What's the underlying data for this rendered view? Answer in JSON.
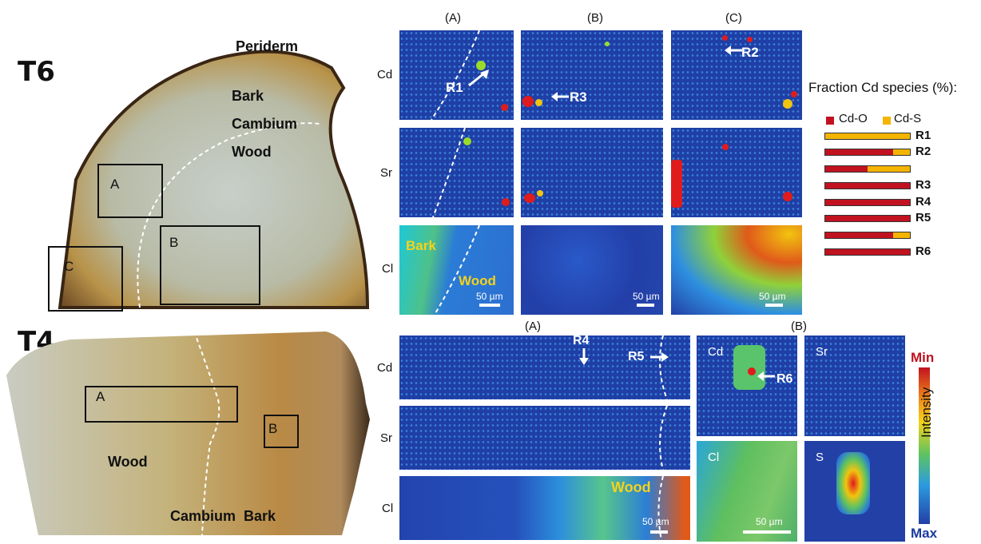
{
  "samples": {
    "t6": "T6",
    "t4": "T4"
  },
  "photo_t6": {
    "labels": {
      "periderm": "Periderm",
      "bark": "Bark",
      "cambium": "Cambium",
      "wood": "Wood"
    },
    "boxes": {
      "a": "A",
      "b": "B",
      "c": "C"
    }
  },
  "photo_t4": {
    "labels": {
      "wood": "Wood",
      "cambium": "Cambium",
      "bark": "Bark"
    },
    "boxes": {
      "a": "A",
      "b": "B"
    }
  },
  "t6_panels": {
    "columns": [
      "(A)",
      "(B)",
      "(C)"
    ],
    "rows": [
      "Cd",
      "Sr",
      "Cl"
    ],
    "regions": {
      "r1": "R1",
      "r2": "R2",
      "r3": "R3"
    },
    "inset_labels": {
      "bark": "Bark",
      "wood": "Wood"
    },
    "scale": "50 µm"
  },
  "t4_panels": {
    "col_a": "(A)",
    "col_b": "(B)",
    "rows": [
      "Cd",
      "Sr",
      "Cl"
    ],
    "regions": {
      "r4": "R4",
      "r5": "R5",
      "r6": "R6"
    },
    "wood_label": "Wood",
    "b_insets": {
      "cd": "Cd",
      "sr": "Sr",
      "cl": "Cl",
      "s": "S"
    },
    "scale": "50 µm"
  },
  "colorbar": {
    "min": "Min",
    "max": "Max",
    "label": "Intensity"
  },
  "fraction_legend": {
    "title": "Fraction Cd species (%):",
    "cd_o": "Cd-O",
    "cd_s": "Cd-S",
    "colors": {
      "cd_o": "#c1121f",
      "cd_s": "#f5b400"
    },
    "bars": [
      {
        "label": "R1",
        "cd_o": 0,
        "cd_s": 100
      },
      {
        "label": "R2",
        "cd_o": 80,
        "cd_s": 20
      },
      {
        "label": "",
        "cd_o": 50,
        "cd_s": 50
      },
      {
        "label": "R3",
        "cd_o": 100,
        "cd_s": 0
      },
      {
        "label": "R4",
        "cd_o": 100,
        "cd_s": 0
      },
      {
        "label": "R5",
        "cd_o": 100,
        "cd_s": 0
      },
      {
        "label": "",
        "cd_o": 80,
        "cd_s": 20
      },
      {
        "label": "R6",
        "cd_o": 100,
        "cd_s": 0
      }
    ]
  }
}
